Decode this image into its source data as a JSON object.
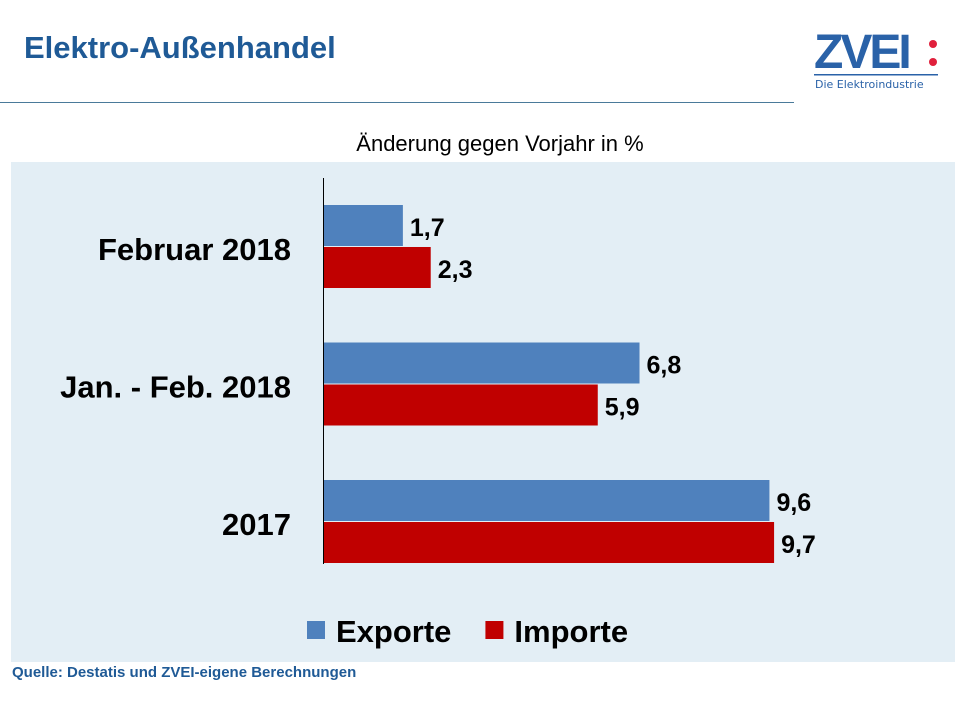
{
  "header": {
    "title": "Elektro-Außenhandel",
    "logo_text": "ZVEI:",
    "logo_tagline": "Die Elektroindustrie"
  },
  "chart_data": {
    "type": "bar",
    "orientation": "horizontal",
    "subtitle": "Änderung gegen Vorjahr in %",
    "categories": [
      "Februar 2018",
      "Jan. - Feb. 2018",
      "2017"
    ],
    "series": [
      {
        "name": "Exporte",
        "color": "#4f81bd",
        "values": [
          1.7,
          6.8,
          9.6
        ],
        "labels": [
          "1,7",
          "6,8",
          "9,6"
        ]
      },
      {
        "name": "Importe",
        "color": "#c00000",
        "values": [
          2.3,
          5.9,
          9.7
        ],
        "labels": [
          "2,3",
          "5,9",
          "9,7"
        ]
      }
    ],
    "xlim": [
      0,
      10
    ],
    "grid": false,
    "legend": "bottom"
  },
  "footer": {
    "source": "Quelle: Destatis und ZVEI-eigene Berechnungen"
  }
}
